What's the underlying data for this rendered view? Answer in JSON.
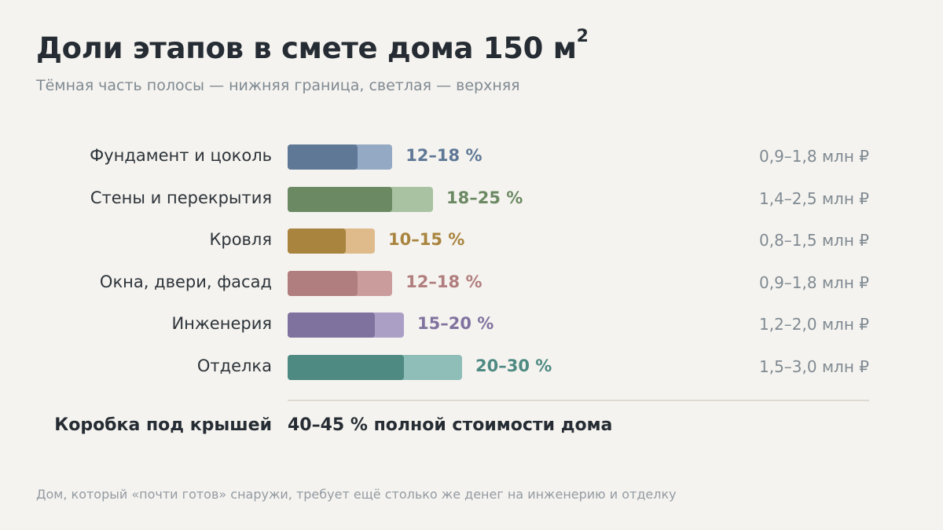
{
  "title": "Доли этапов в смете дома 150 м",
  "title_superscript": "2",
  "subtitle": "Тёмная часть полосы — нижняя граница, светлая — верхняя",
  "chart_data": {
    "type": "bar",
    "orientation": "horizontal",
    "stacked_range": true,
    "unit": "%",
    "categories": [
      "Фундамент и цоколь",
      "Стены и перекрытия",
      "Кровля",
      "Окна, двери, фасад",
      "Инженерия",
      "Отделка"
    ],
    "series": [
      {
        "values": [
          12,
          18,
          10,
          12,
          15,
          20
        ]
      },
      {
        "values": [
          18,
          25,
          15,
          18,
          20,
          30
        ]
      }
    ],
    "pct_labels": [
      "12–18 %",
      "18–25 %",
      "10–15 %",
      "12–18 %",
      "15–20 %",
      "20–30 %"
    ],
    "cost_labels": [
      "0,9–1,8 млн ₽",
      "1,4–2,5 млн ₽",
      "0,8–1,5 млн ₽",
      "0,9–1,8 млн ₽",
      "1,2–2,0 млн ₽",
      "1,5–3,0 млн ₽"
    ],
    "colors_dark": [
      "#5e7896",
      "#6b8a64",
      "#a8843e",
      "#b07e7e",
      "#80729f",
      "#4e8a82"
    ],
    "colors_light": [
      "#93a9c4",
      "#a9c2a2",
      "#dfbb8c",
      "#cb9c9c",
      "#ab9fc6",
      "#8fbdb8"
    ],
    "label_colors": [
      "#5e7896",
      "#6b8a64",
      "#a8843e",
      "#b07e7e",
      "#80729f",
      "#4e8a82"
    ],
    "xlim": [
      0,
      100
    ]
  },
  "summary": {
    "label": "Коробка под крышей",
    "value": "40–45 % полной стоимости дома"
  },
  "footnote": "Дом, который «почти готов» снаружи, требует ещё столько же денег на инженерию и отделку"
}
